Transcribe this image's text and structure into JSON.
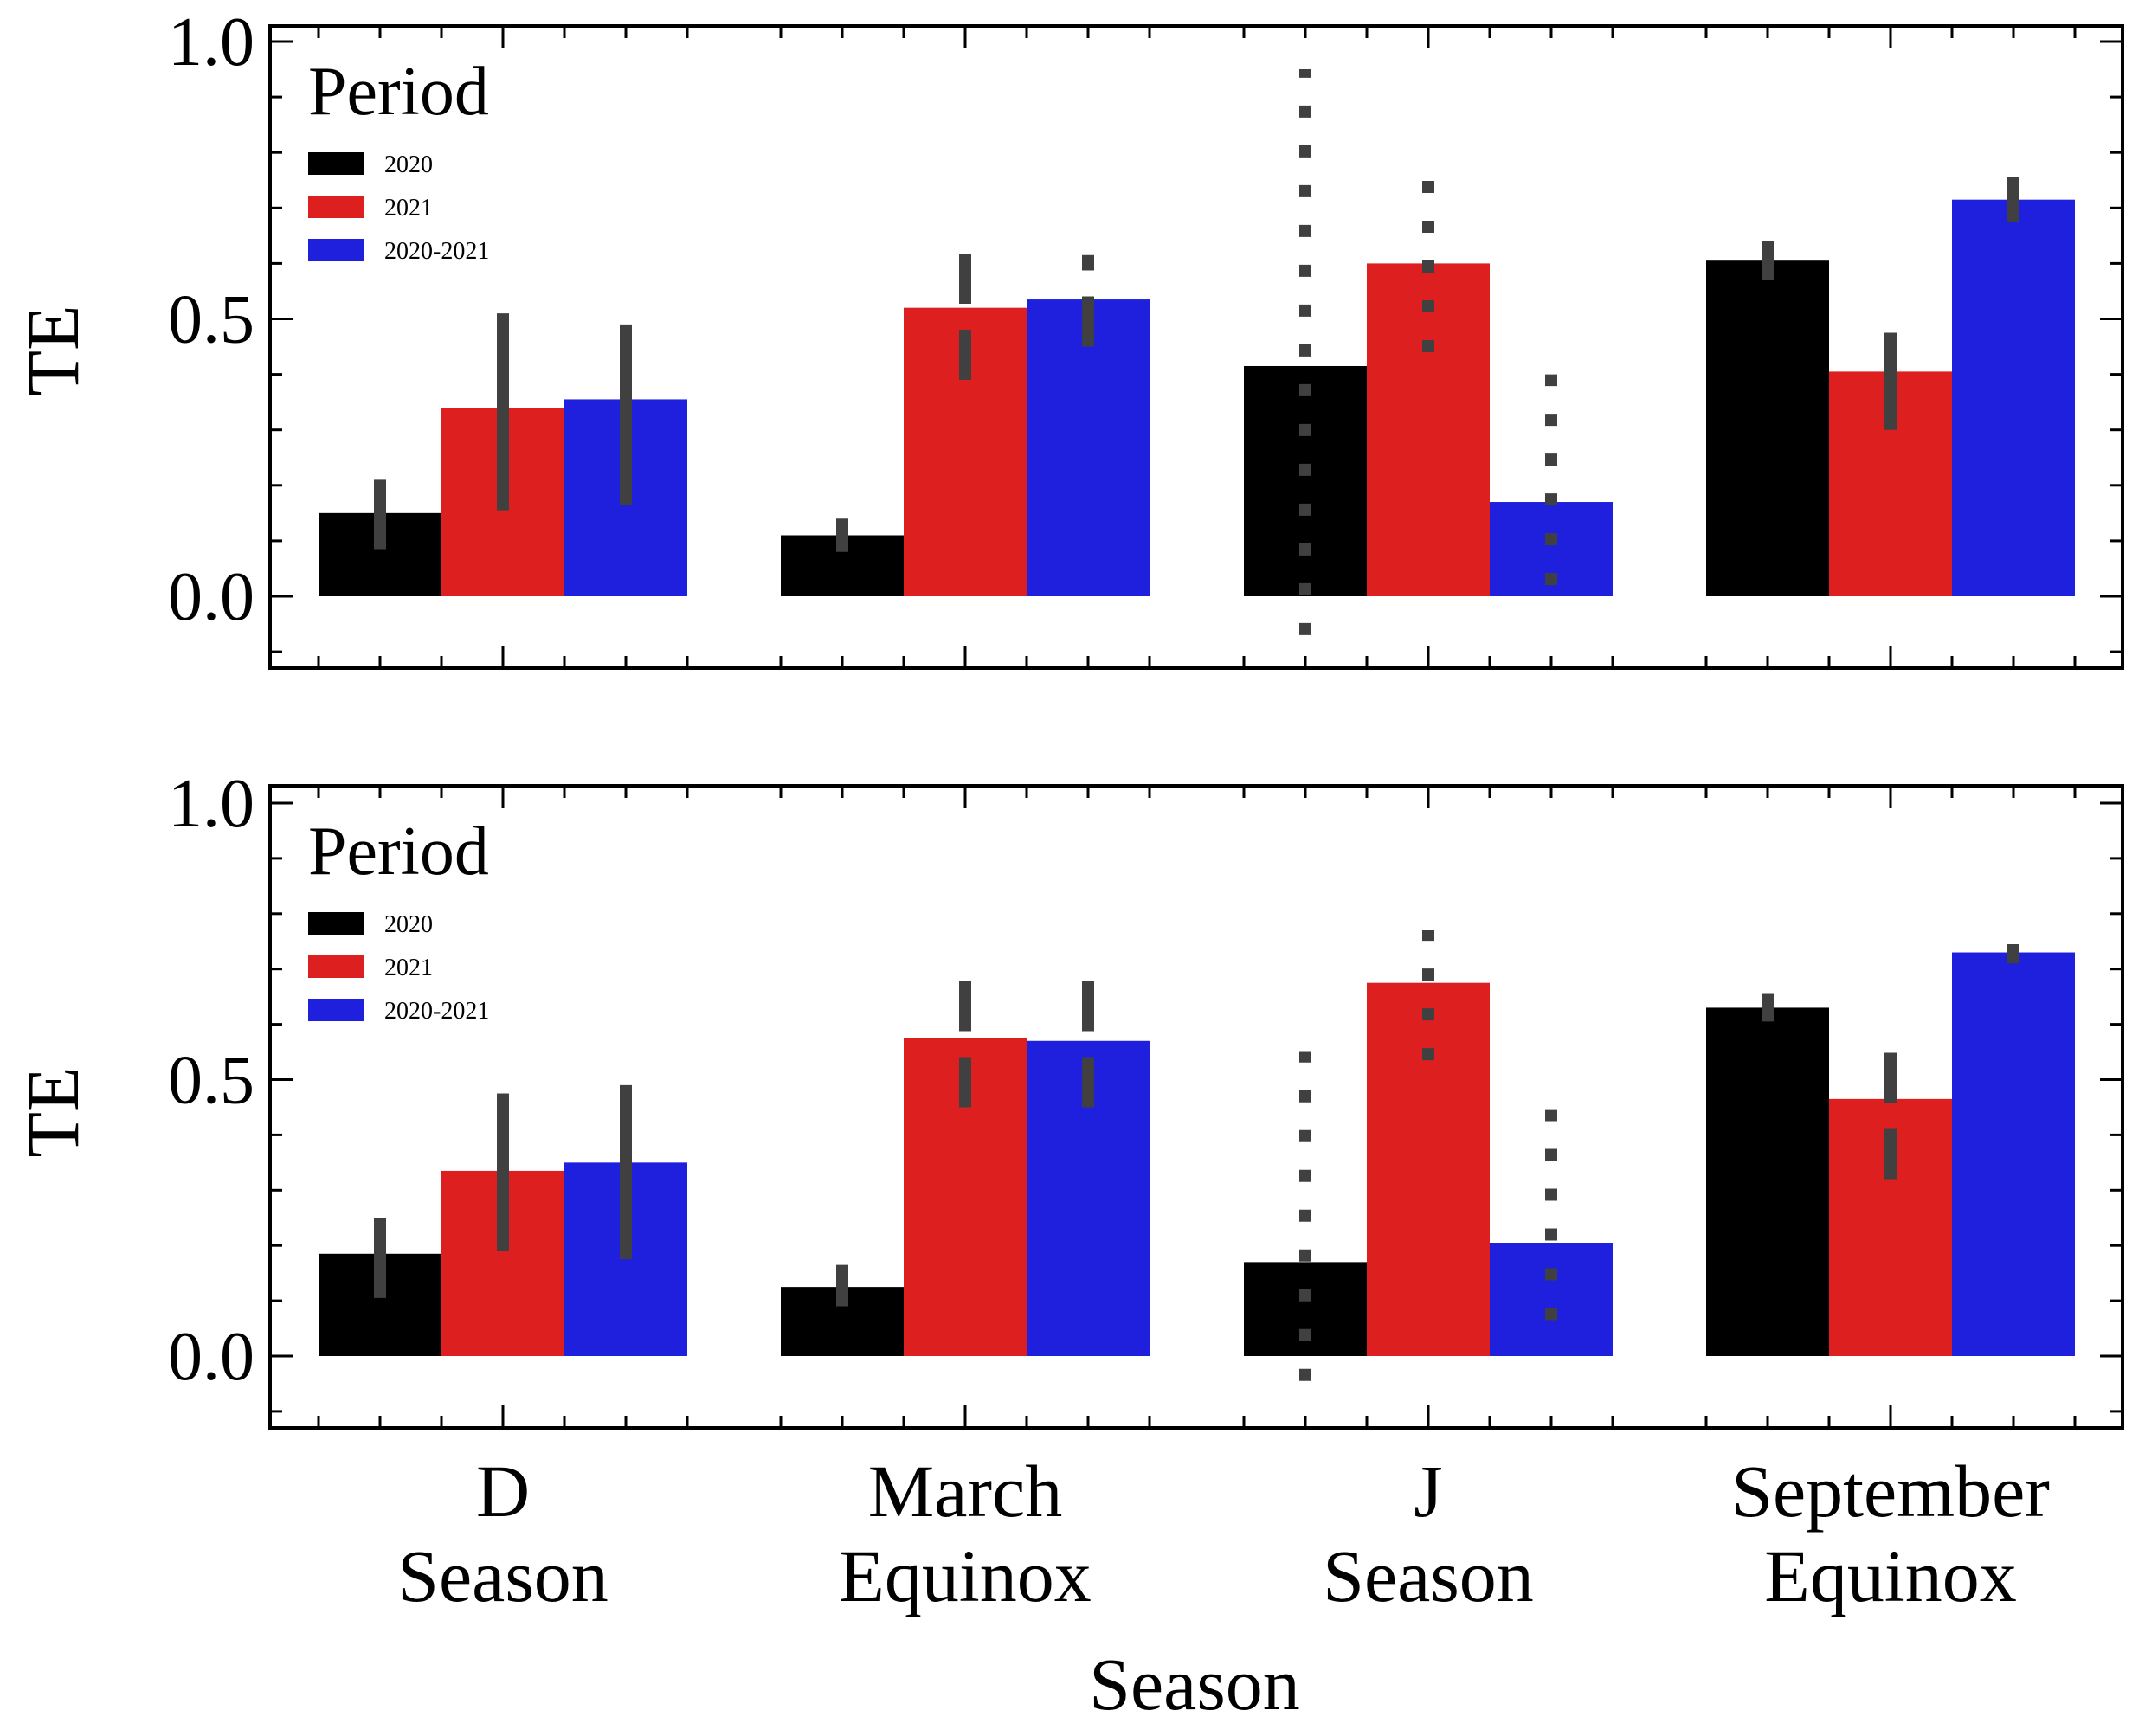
{
  "figure": {
    "xlabel": "Season",
    "ylabel": "TE",
    "categories": [
      {
        "line1": "D",
        "line2": "Season"
      },
      {
        "line1": "March",
        "line2": "Equinox"
      },
      {
        "line1": "J",
        "line2": "Season"
      },
      {
        "line1": "September",
        "line2": "Equinox"
      }
    ],
    "legend_title": "Period",
    "error_bar_color": "#404040"
  },
  "chart_data": [
    {
      "type": "bar",
      "panel": "top",
      "xlabel": "",
      "ylabel": "TE",
      "ylim": [
        -0.13,
        1.03
      ],
      "yticks": [
        "0.0",
        "0.5",
        "1.0"
      ],
      "categories": [
        "D Season",
        "March Equinox",
        "J Season",
        "September Equinox"
      ],
      "series": [
        {
          "name": "2020",
          "color": "#000000",
          "values": [
            0.15,
            0.11,
            0.415,
            0.605
          ],
          "err_low": [
            0.085,
            0.08,
            -0.07,
            0.57
          ],
          "err_high": [
            0.21,
            0.14,
            0.95,
            0.64
          ],
          "err_style": [
            "solid",
            "solid",
            "dotted",
            "solid"
          ]
        },
        {
          "name": "2021",
          "color": "#de1f1f",
          "values": [
            0.34,
            0.52,
            0.6,
            0.405
          ],
          "err_low": [
            0.155,
            0.39,
            0.44,
            0.3
          ],
          "err_high": [
            0.51,
            0.64,
            0.75,
            0.475
          ],
          "err_style": [
            "solid",
            "dashed",
            "dotted",
            "solid"
          ]
        },
        {
          "name": "2020-2021",
          "color": "#1f1fde",
          "values": [
            0.355,
            0.535,
            0.17,
            0.715
          ],
          "err_low": [
            0.165,
            0.45,
            0.02,
            0.675
          ],
          "err_high": [
            0.49,
            0.615,
            0.4,
            0.755
          ],
          "err_style": [
            "solid",
            "dashed",
            "dotted",
            "solid"
          ]
        }
      ],
      "legend": {
        "title": "Period",
        "position": "upper-left",
        "entries": [
          "2020",
          "2021",
          "2020-2021"
        ]
      }
    },
    {
      "type": "bar",
      "panel": "bottom",
      "xlabel": "Season",
      "ylabel": "TE",
      "ylim": [
        -0.13,
        1.03
      ],
      "yticks": [
        "0.0",
        "0.5",
        "1.0"
      ],
      "categories": [
        "D Season",
        "March Equinox",
        "J Season",
        "September Equinox"
      ],
      "series": [
        {
          "name": "2020",
          "color": "#000000",
          "values": [
            0.185,
            0.125,
            0.17,
            0.63
          ],
          "err_low": [
            0.105,
            0.09,
            -0.045,
            0.605
          ],
          "err_high": [
            0.25,
            0.165,
            0.55,
            0.655
          ],
          "err_style": [
            "solid",
            "solid",
            "dotted",
            "solid"
          ]
        },
        {
          "name": "2021",
          "color": "#de1f1f",
          "values": [
            0.335,
            0.575,
            0.675,
            0.465
          ],
          "err_low": [
            0.19,
            0.45,
            0.535,
            0.32
          ],
          "err_high": [
            0.475,
            0.7,
            0.77,
            0.56
          ],
          "err_style": [
            "solid",
            "dashed",
            "dotted",
            "dashed"
          ]
        },
        {
          "name": "2020-2021",
          "color": "#1f1fde",
          "values": [
            0.35,
            0.57,
            0.205,
            0.73
          ],
          "err_low": [
            0.175,
            0.45,
            0.065,
            0.71
          ],
          "err_high": [
            0.49,
            0.695,
            0.445,
            0.745
          ],
          "err_style": [
            "solid",
            "dashed",
            "dotted",
            "solid"
          ]
        }
      ],
      "legend": {
        "title": "Period",
        "position": "upper-left",
        "entries": [
          "2020",
          "2021",
          "2020-2021"
        ]
      }
    }
  ]
}
